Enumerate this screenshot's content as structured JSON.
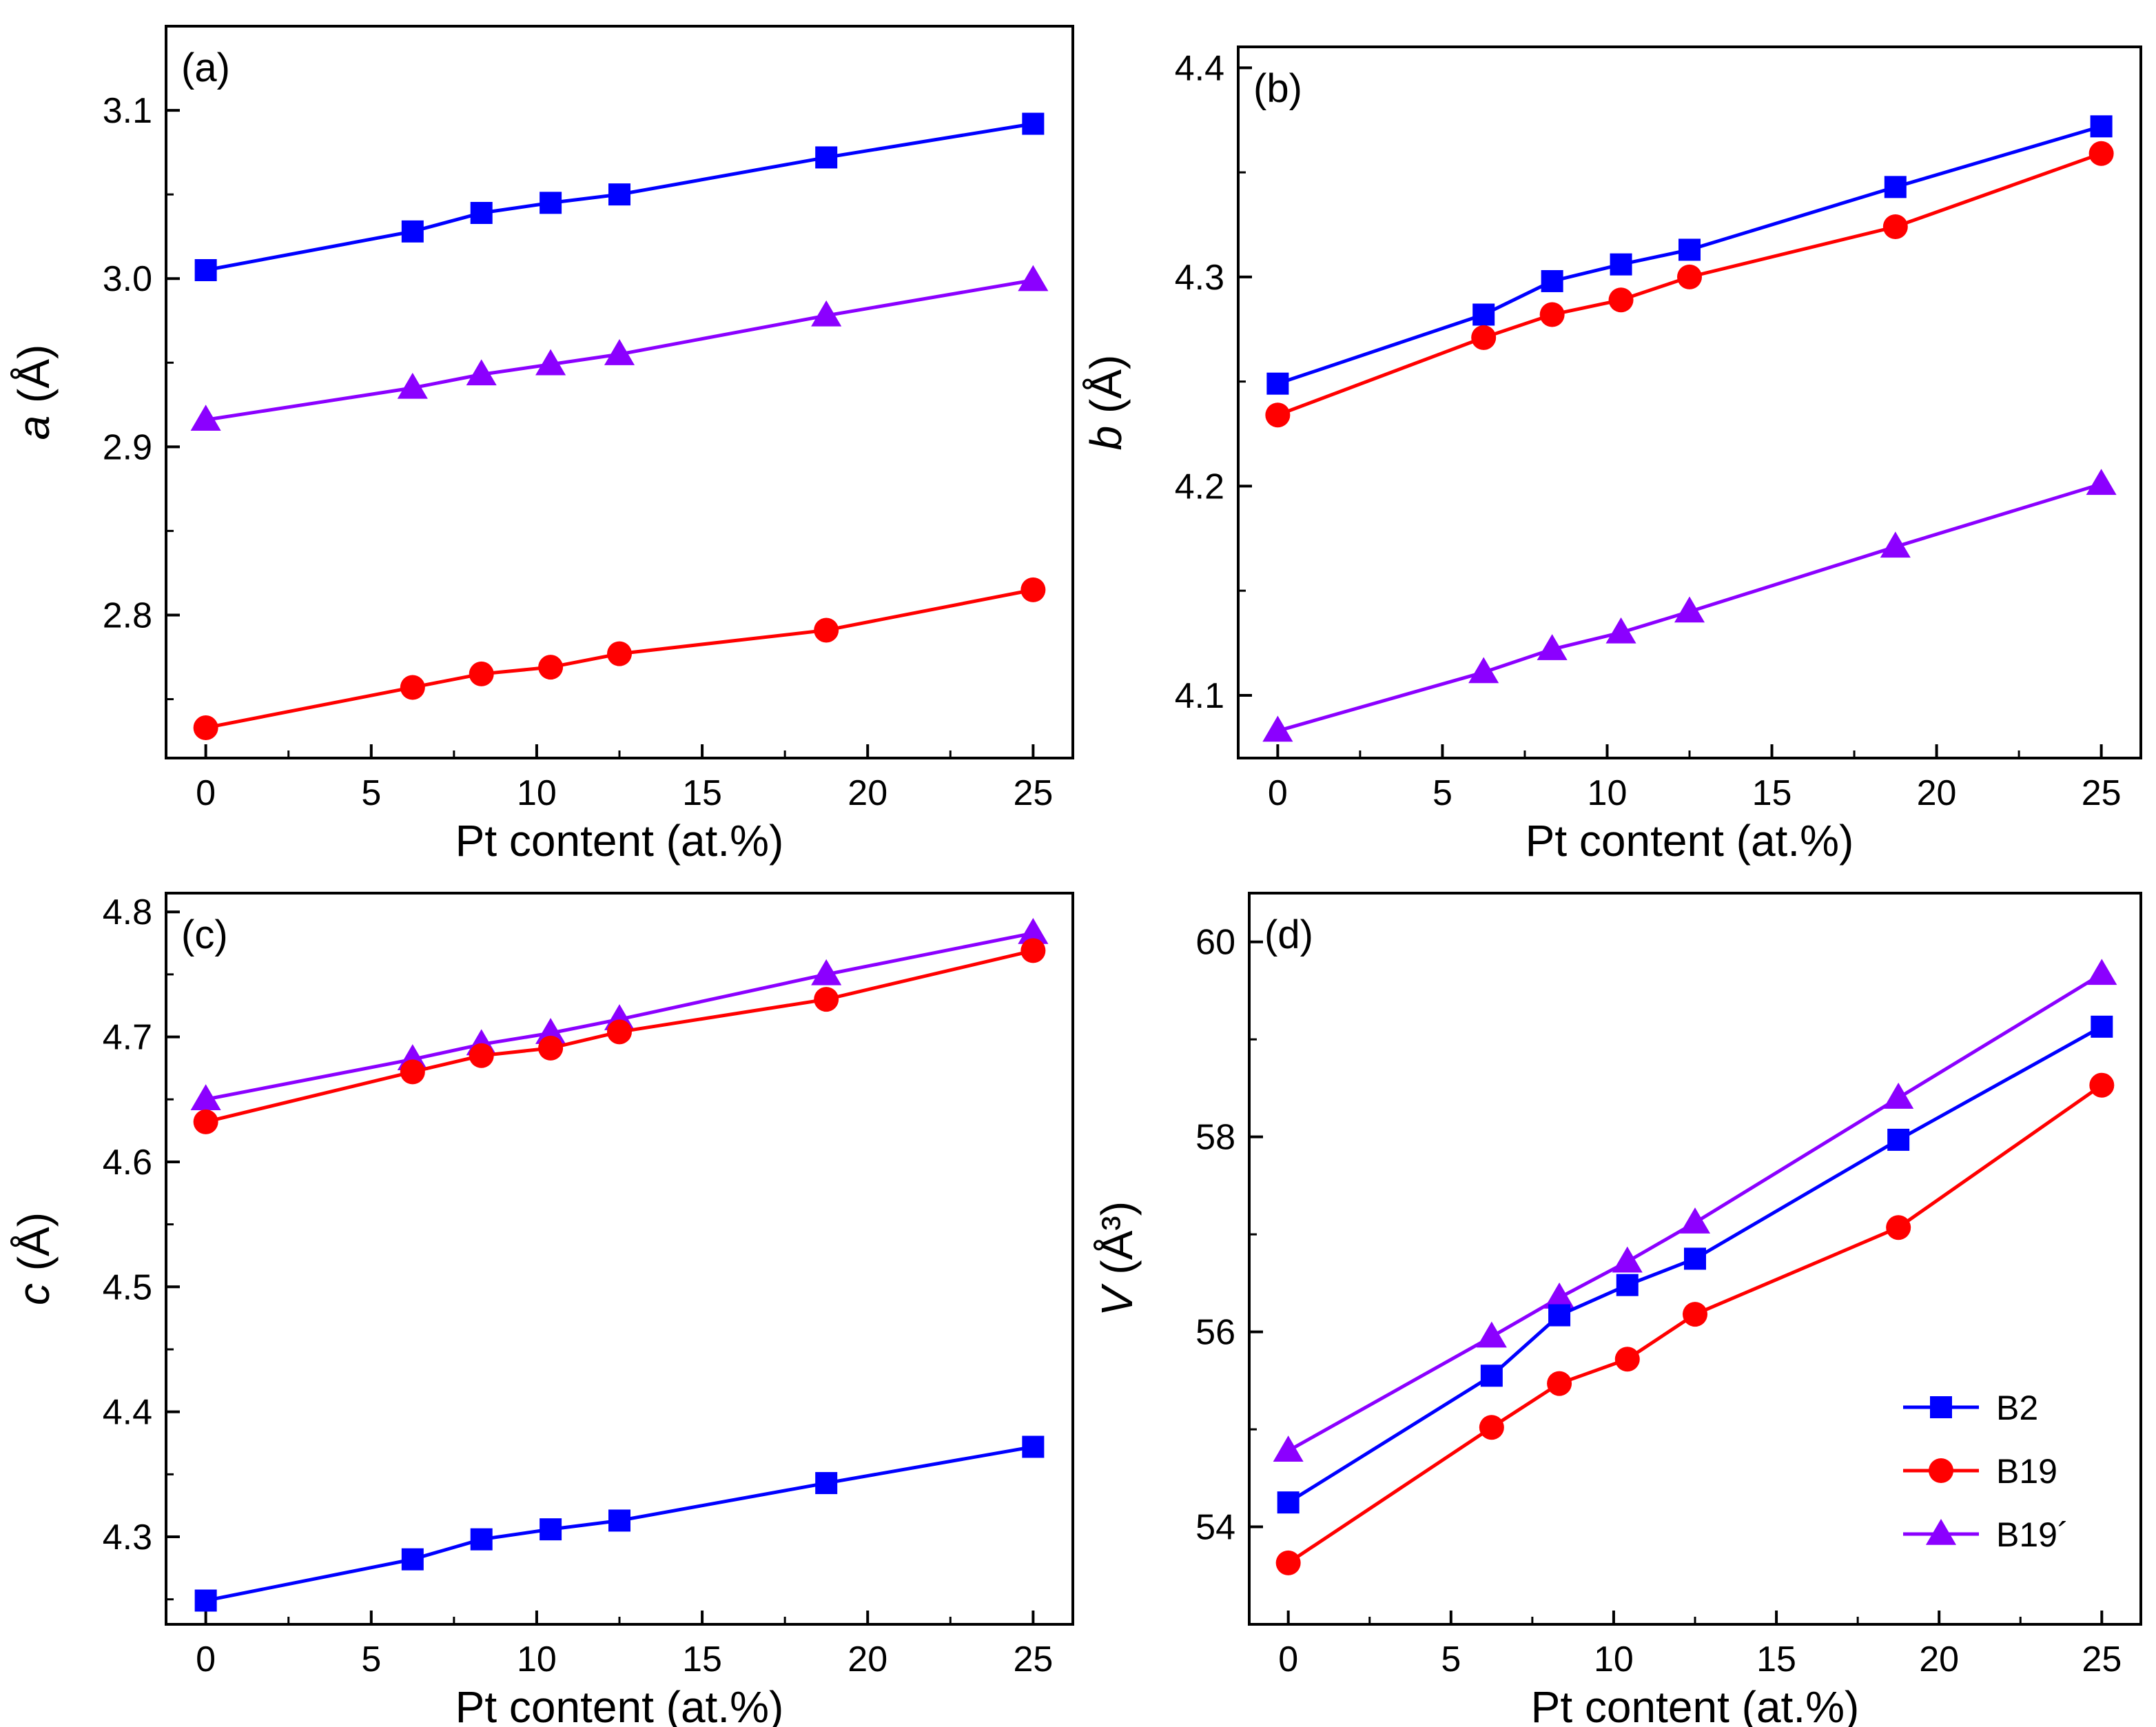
{
  "figure": {
    "xlabel": "Pt content (at.%)",
    "colors": {
      "B2": "#0000ff",
      "B19": "#ff0000",
      "B19'": "#8b00ff"
    },
    "legend": [
      {
        "name": "B2",
        "marker": "square"
      },
      {
        "name": "B19",
        "marker": "circle"
      },
      {
        "name": "B19´",
        "marker": "triangle"
      }
    ]
  },
  "chart_data": [
    {
      "type": "line",
      "panel": "(a)",
      "title": "",
      "ylabel_var": "a",
      "ylabel_unit": " (Å)",
      "xlabel": "Pt content (at.%)",
      "xlim": [
        -1.2,
        26.2
      ],
      "ylim": [
        2.715,
        3.15
      ],
      "xticks": [
        0,
        5,
        10,
        15,
        20,
        25
      ],
      "xtick_labels": [
        "0",
        "5",
        "10",
        "15",
        "20",
        "25"
      ],
      "yticks": [
        2.8,
        2.9,
        3.0,
        3.1
      ],
      "ytick_labels": [
        "2.8",
        "2.9",
        "3.0",
        "3.1"
      ],
      "x": [
        0,
        6.25,
        8.33,
        10.42,
        12.5,
        18.75,
        25
      ],
      "series": [
        {
          "name": "B2",
          "marker": "square",
          "color": "#0000ff",
          "values": [
            3.005,
            3.028,
            3.039,
            3.045,
            3.05,
            3.072,
            3.092
          ]
        },
        {
          "name": "B19'",
          "marker": "triangle",
          "color": "#8b00ff",
          "values": [
            2.916,
            2.935,
            2.943,
            2.949,
            2.955,
            2.978,
            2.999
          ]
        },
        {
          "name": "B19",
          "marker": "circle",
          "color": "#ff0000",
          "values": [
            2.733,
            2.757,
            2.765,
            2.769,
            2.777,
            2.791,
            2.815
          ]
        }
      ]
    },
    {
      "type": "line",
      "panel": "(b)",
      "title": "",
      "ylabel_var": "b",
      "ylabel_unit": " (Å)",
      "xlabel": "Pt content (at.%)",
      "xlim": [
        -1.2,
        26.2
      ],
      "ylim": [
        4.07,
        4.41
      ],
      "xticks": [
        0,
        5,
        10,
        15,
        20,
        25
      ],
      "xtick_labels": [
        "0",
        "5",
        "10",
        "15",
        "20",
        "25"
      ],
      "yticks": [
        4.1,
        4.2,
        4.3,
        4.4
      ],
      "ytick_labels": [
        "4.1",
        "4.2",
        "4.3",
        "4.4"
      ],
      "x": [
        0,
        6.25,
        8.33,
        10.42,
        12.5,
        18.75,
        25
      ],
      "series": [
        {
          "name": "B2",
          "marker": "square",
          "color": "#0000ff",
          "values": [
            4.249,
            4.282,
            4.298,
            4.306,
            4.313,
            4.343,
            4.372
          ]
        },
        {
          "name": "B19",
          "marker": "circle",
          "color": "#ff0000",
          "values": [
            4.234,
            4.271,
            4.282,
            4.289,
            4.3,
            4.324,
            4.359
          ]
        },
        {
          "name": "B19'",
          "marker": "triangle",
          "color": "#8b00ff",
          "values": [
            4.083,
            4.111,
            4.122,
            4.13,
            4.14,
            4.171,
            4.201
          ]
        }
      ]
    },
    {
      "type": "line",
      "panel": "(c)",
      "title": "",
      "ylabel_var": "c",
      "ylabel_unit": " (Å)",
      "xlabel": "Pt content (at.%)",
      "xlim": [
        -1.2,
        26.2
      ],
      "ylim": [
        4.23,
        4.815
      ],
      "xticks": [
        0,
        5,
        10,
        15,
        20,
        25
      ],
      "xtick_labels": [
        "0",
        "5",
        "10",
        "15",
        "20",
        "25"
      ],
      "yticks": [
        4.3,
        4.4,
        4.5,
        4.6,
        4.7,
        4.8
      ],
      "ytick_labels": [
        "4.3",
        "4.4",
        "4.5",
        "4.6",
        "4.7",
        "4.8"
      ],
      "x": [
        0,
        6.25,
        8.33,
        10.42,
        12.5,
        18.75,
        25
      ],
      "series": [
        {
          "name": "B19'",
          "marker": "triangle",
          "color": "#8b00ff",
          "values": [
            4.65,
            4.682,
            4.694,
            4.703,
            4.714,
            4.75,
            4.783
          ]
        },
        {
          "name": "B19",
          "marker": "circle",
          "color": "#ff0000",
          "values": [
            4.632,
            4.672,
            4.685,
            4.691,
            4.704,
            4.73,
            4.769
          ]
        },
        {
          "name": "B2",
          "marker": "square",
          "color": "#0000ff",
          "values": [
            4.249,
            4.282,
            4.298,
            4.306,
            4.313,
            4.343,
            4.372
          ]
        }
      ]
    },
    {
      "type": "line",
      "panel": "(d)",
      "title": "",
      "ylabel_var": "V",
      "ylabel_unit": " (Å³)",
      "xlabel": "Pt content (at.%)",
      "xlim": [
        -1.2,
        26.2
      ],
      "ylim": [
        53.0,
        60.5
      ],
      "xticks": [
        0,
        5,
        10,
        15,
        20,
        25
      ],
      "xtick_labels": [
        "0",
        "5",
        "10",
        "15",
        "20",
        "25"
      ],
      "yticks": [
        54,
        56,
        58,
        60
      ],
      "ytick_labels": [
        "54",
        "56",
        "58",
        "60"
      ],
      "x": [
        0,
        6.25,
        8.33,
        10.42,
        12.5,
        18.75,
        25
      ],
      "legend_location": "bottom-right",
      "series": [
        {
          "name": "B19'",
          "marker": "triangle",
          "color": "#8b00ff",
          "values": [
            54.78,
            55.95,
            56.35,
            56.72,
            57.12,
            58.4,
            59.67
          ]
        },
        {
          "name": "B2",
          "marker": "square",
          "color": "#0000ff",
          "values": [
            54.25,
            55.55,
            56.17,
            56.48,
            56.75,
            57.97,
            59.13
          ]
        },
        {
          "name": "B19",
          "marker": "circle",
          "color": "#ff0000",
          "values": [
            53.63,
            55.02,
            55.47,
            55.72,
            56.18,
            57.07,
            58.53
          ]
        }
      ]
    }
  ]
}
